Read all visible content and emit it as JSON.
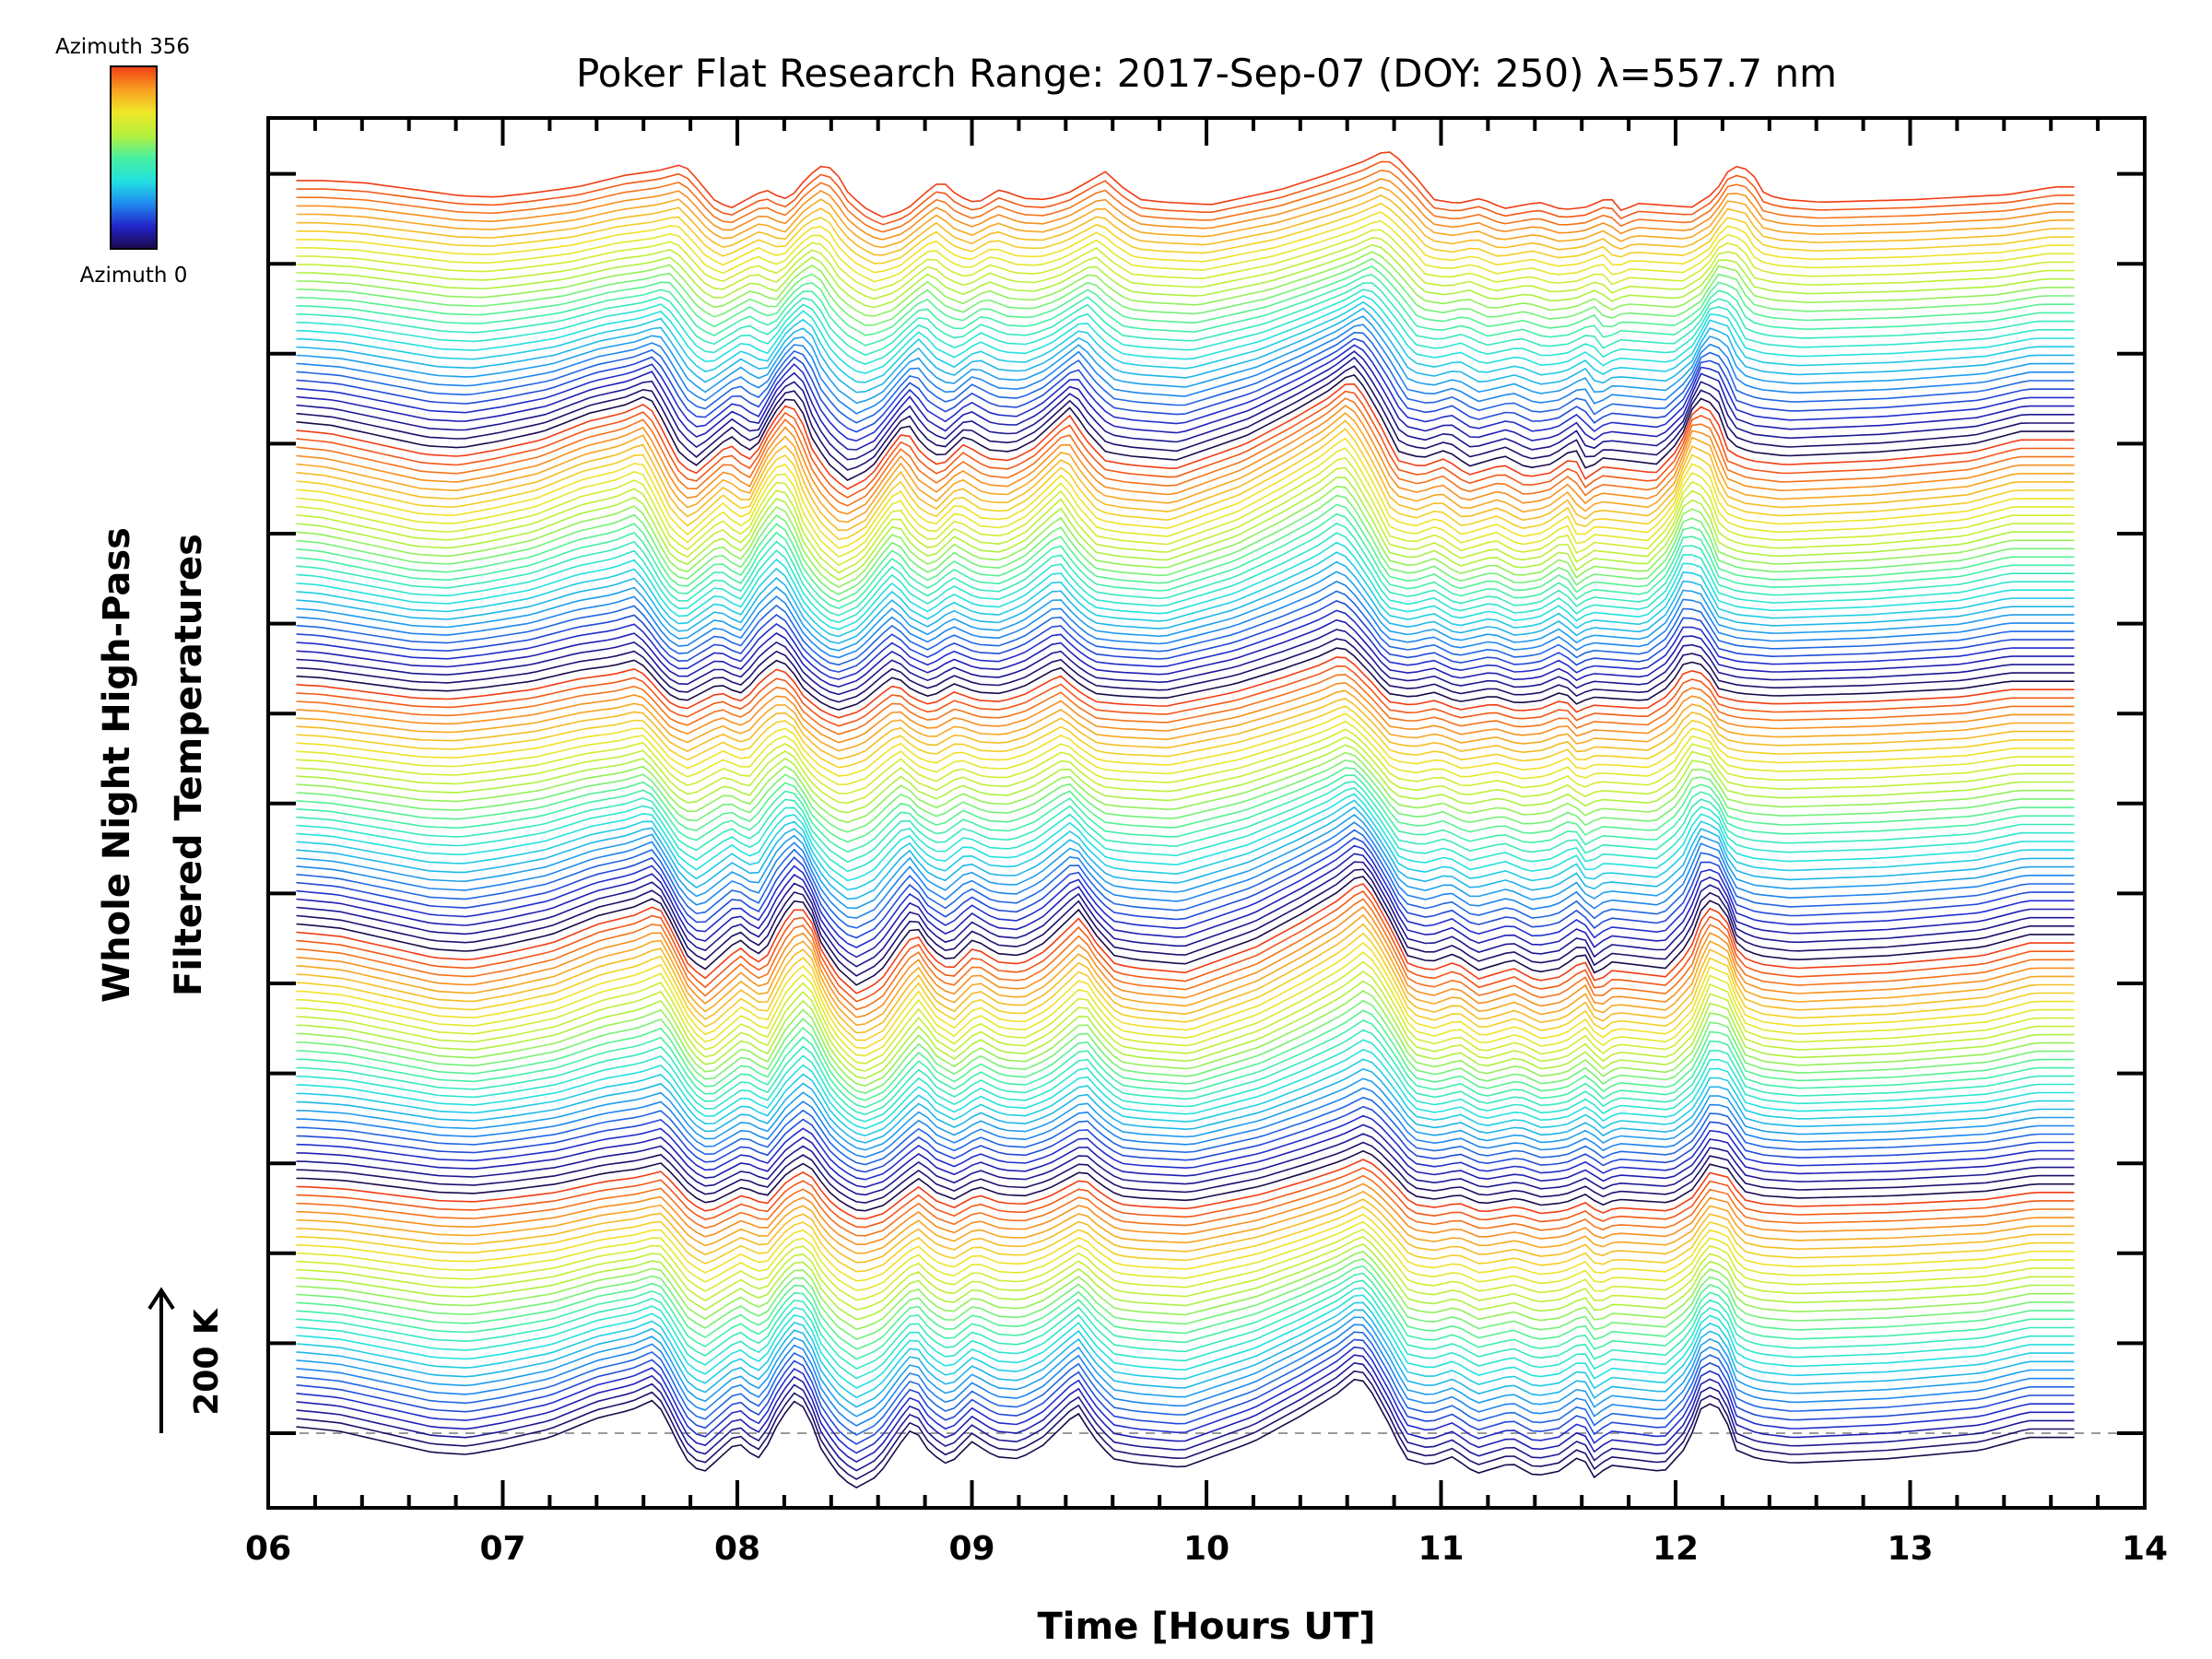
{
  "chart_data": {
    "type": "line",
    "title": "Poker Flat Research Range: 2017-Sep-07 (DOY: 250) λ=557.7 nm",
    "xlabel": "Time [Hours UT]",
    "ylabel_line1": "Whole Night High-Pass",
    "ylabel_line2": "Filtered Temperatures",
    "xlim": [
      6,
      14
    ],
    "x_ticks": [
      "06",
      "07",
      "08",
      "09",
      "10",
      "11",
      "12",
      "13",
      "14"
    ],
    "scale_bar_label": "200 K",
    "scale_bar_kelvin": 200,
    "colorbar": {
      "top_label": "Azimuth 356",
      "bottom_label": "Azimuth 0",
      "azimuth_min": 0,
      "azimuth_max": 356,
      "colormap": [
        "#1a0a4a",
        "#2222c8",
        "#1f8cf0",
        "#22e0e0",
        "#48f0a0",
        "#b4f03c",
        "#f0e628",
        "#f8a020",
        "#f03c14"
      ]
    },
    "series_count": 150,
    "azimuth_cycle_length": 30,
    "time_start": 6.12,
    "time_end": 13.7,
    "base_profile": {
      "x": [
        6.12,
        6.3,
        6.5,
        6.7,
        6.85,
        7.0,
        7.2,
        7.4,
        7.55,
        7.65,
        7.7,
        7.78,
        7.85,
        7.92,
        8.0,
        8.05,
        8.1,
        8.18,
        8.25,
        8.3,
        8.35,
        8.42,
        8.5,
        8.6,
        8.7,
        8.75,
        8.82,
        8.9,
        9.0,
        9.1,
        9.2,
        9.3,
        9.45,
        9.52,
        9.6,
        9.7,
        9.8,
        9.9,
        10.0,
        10.2,
        10.4,
        10.55,
        10.65,
        10.7,
        10.78,
        10.85,
        10.95,
        11.05,
        11.15,
        11.3,
        11.4,
        11.5,
        11.6,
        11.65,
        11.72,
        11.8,
        11.95,
        12.05,
        12.12,
        12.2,
        12.26,
        12.35,
        12.5,
        12.7,
        12.9,
        13.1,
        13.3,
        13.5,
        13.7
      ],
      "y": [
        15,
        5,
        -20,
        -45,
        -50,
        -35,
        -10,
        35,
        55,
        80,
        30,
        -60,
        -95,
        -60,
        -20,
        -45,
        -60,
        30,
        80,
        50,
        -30,
        -90,
        -130,
        -100,
        -20,
        15,
        -45,
        -75,
        -20,
        -55,
        -60,
        -30,
        50,
        -10,
        -60,
        -70,
        -75,
        -80,
        -60,
        -20,
        40,
        90,
        135,
        100,
        20,
        -60,
        -75,
        -55,
        -95,
        -70,
        -100,
        -90,
        -50,
        -105,
        -75,
        -80,
        -90,
        -30,
        75,
        55,
        -40,
        -60,
        -70,
        -65,
        -60,
        -50,
        -40,
        -10,
        -10
      ]
    }
  }
}
